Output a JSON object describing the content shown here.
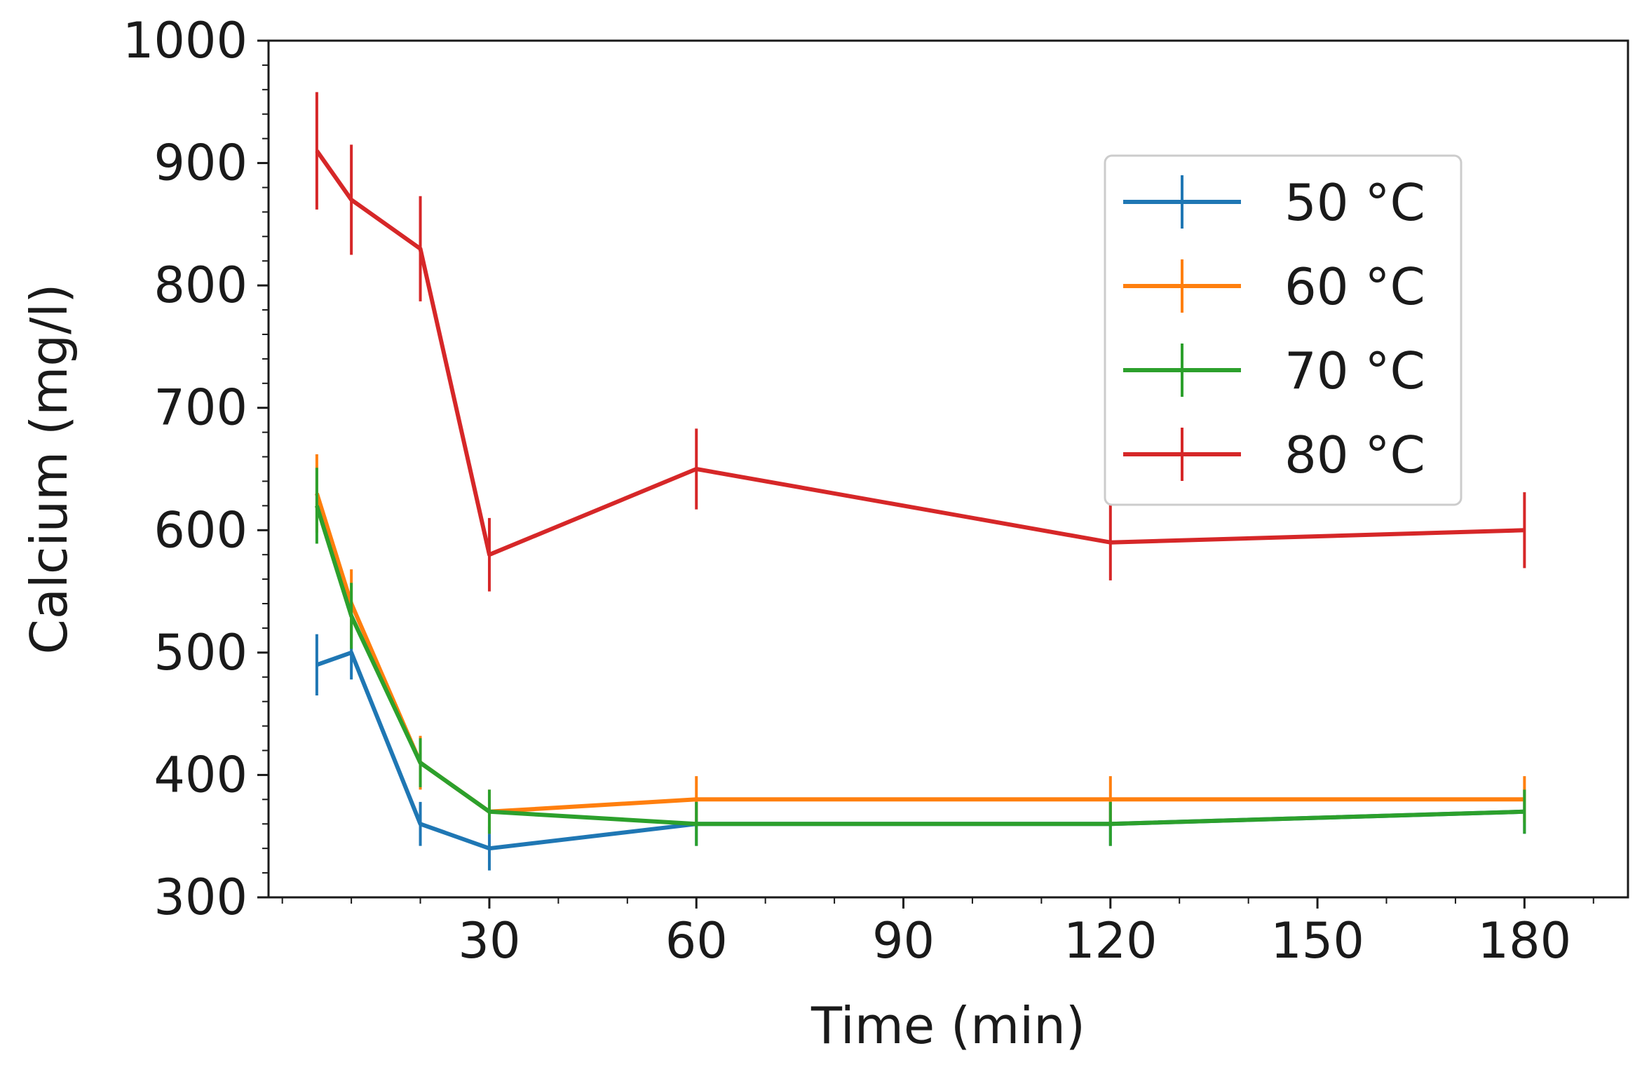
{
  "chart_data": {
    "type": "line",
    "title": "",
    "xlabel": "Time (min)",
    "ylabel": "Calcium (mg/l)",
    "xlim": [
      -2,
      195
    ],
    "ylim": [
      300,
      1000
    ],
    "xticks": [
      30,
      60,
      90,
      120,
      150,
      180
    ],
    "xtick_labels": [
      "30",
      "60",
      "90",
      "120",
      "150",
      "180"
    ],
    "yticks": [
      300,
      400,
      500,
      600,
      700,
      800,
      900,
      1000
    ],
    "ytick_labels": [
      "300",
      "400",
      "500",
      "600",
      "700",
      "800",
      "900",
      "1000"
    ],
    "x": [
      5,
      10,
      20,
      30,
      60,
      120,
      180
    ],
    "legend_position": "top-right",
    "grid": false,
    "series": [
      {
        "name": "50 °C",
        "color": "#1f77b4",
        "values": [
          490,
          500,
          360,
          340,
          360,
          360,
          370
        ],
        "errors": [
          25,
          22,
          18,
          18,
          18,
          18,
          18
        ]
      },
      {
        "name": "60 °C",
        "color": "#ff7f0e",
        "values": [
          630,
          540,
          410,
          370,
          380,
          380,
          380
        ],
        "errors": [
          32,
          28,
          22,
          18,
          19,
          19,
          19
        ]
      },
      {
        "name": "70 °C",
        "color": "#2ca02c",
        "values": [
          620,
          530,
          410,
          370,
          360,
          360,
          370
        ],
        "errors": [
          31,
          27,
          20,
          18,
          18,
          18,
          18
        ]
      },
      {
        "name": "80 °C",
        "color": "#d62728",
        "values": [
          910,
          870,
          830,
          580,
          650,
          590,
          600
        ],
        "errors": [
          48,
          45,
          43,
          30,
          33,
          31,
          31
        ]
      }
    ]
  }
}
